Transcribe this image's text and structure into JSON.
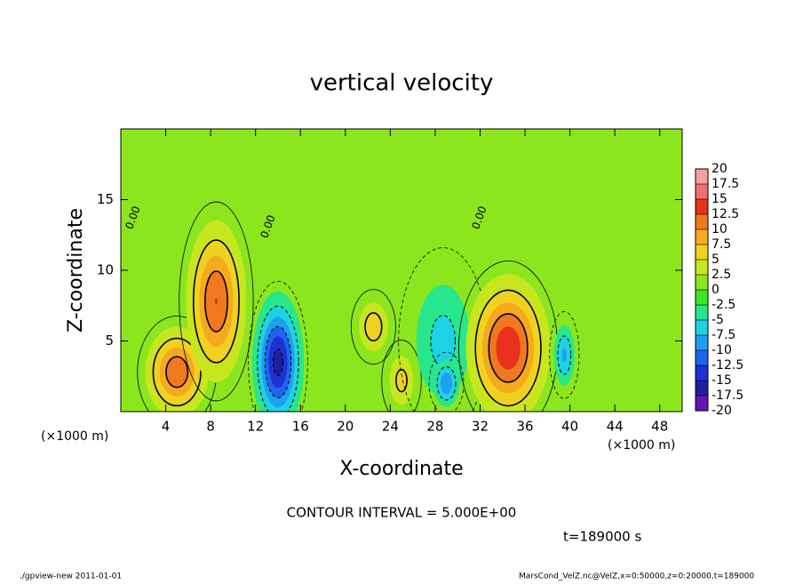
{
  "chart_data": {
    "type": "contour",
    "title": "vertical velocity",
    "xlabel": "X-coordinate",
    "ylabel": "Z-coordinate",
    "x_unit": "(×1000 m)",
    "xlim": [
      0,
      50
    ],
    "xticks": [
      4,
      8,
      12,
      16,
      20,
      24,
      28,
      32,
      36,
      40,
      44,
      48
    ],
    "ylim": [
      0,
      20
    ],
    "yticks": [
      5,
      10,
      15
    ],
    "contour_label": "0.00",
    "contour_interval": "CONTOUR INTERVAL = 5.000E+00",
    "time": "t=189000 s",
    "levels": [
      20,
      17.5,
      15,
      12.5,
      10,
      7.5,
      5,
      2.5,
      0,
      -2.5,
      -5,
      -7.5,
      -10,
      -12.5,
      -15,
      -17.5,
      -20
    ],
    "colors": [
      "#f4a0a0",
      "#f07070",
      "#e8321e",
      "#f0781e",
      "#f5aa1e",
      "#f0d21e",
      "#c8e61e",
      "#8ce61e",
      "#3ce628",
      "#28e68c",
      "#1ed2e6",
      "#1ea0f0",
      "#1e64f0",
      "#1e32d2",
      "#1e1ea0",
      "#6414b4"
    ],
    "features": [
      {
        "x": 5,
        "z": 2.8,
        "value": 12,
        "sx": 1.6,
        "sz": 1.8
      },
      {
        "x": 8.5,
        "z": 7.8,
        "value": 12.5,
        "sx": 1.5,
        "sz": 3.2
      },
      {
        "x": 14,
        "z": 3.5,
        "value": -16,
        "sx": 1.2,
        "sz": 2.6
      },
      {
        "x": 22.5,
        "z": 6,
        "value": 7,
        "sx": 0.9,
        "sz": 1.2
      },
      {
        "x": 25,
        "z": 2.2,
        "value": 6,
        "sx": 0.8,
        "sz": 1.3
      },
      {
        "x": 28.7,
        "z": 5,
        "value": -6,
        "sx": 1.8,
        "sz": 3
      },
      {
        "x": 29,
        "z": 2,
        "value": -10,
        "sx": 0.7,
        "sz": 1
      },
      {
        "x": 34.5,
        "z": 4.5,
        "value": 14.5,
        "sx": 2,
        "sz": 2.8
      },
      {
        "x": 39.5,
        "z": 4,
        "value": -8,
        "sx": 0.6,
        "sz": 1.4
      }
    ]
  },
  "footer": {
    "left": "./gpview-new   2011-01-01",
    "right": "MarsCond_VelZ.nc@VelZ,x=0:50000,z=0:20000,t=189000"
  }
}
